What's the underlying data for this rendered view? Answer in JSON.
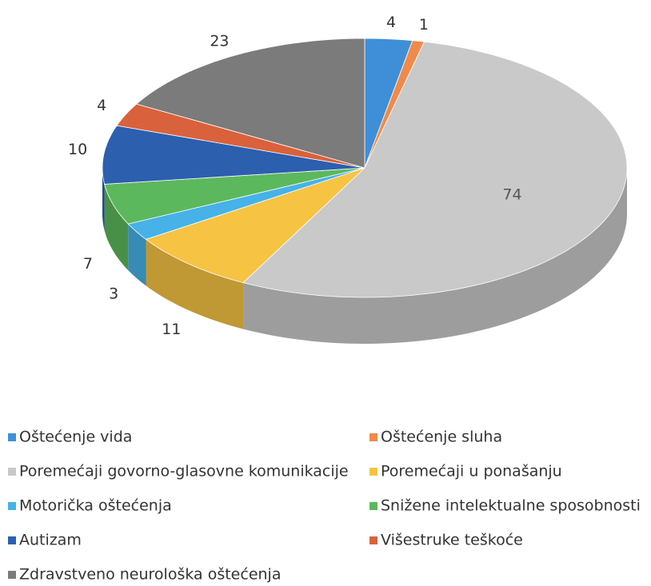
{
  "chart_data": {
    "type": "pie",
    "categories": [
      "Oštećenje vida",
      "Oštećenje sluha",
      "Poremećaji govorno-glasovne komunikacije",
      "Poremećaji u ponašanju",
      "Motorička oštećenja",
      "Snižene intelektualne sposobnosti",
      "Autizam",
      "Višestruke teškoće",
      "Zdravstveno neurološka oštećenja"
    ],
    "values": [
      4,
      1,
      74,
      11,
      3,
      7,
      10,
      4,
      23
    ],
    "colors": [
      "#3f8fd8",
      "#f08a4b",
      "#c9c9c9",
      "#f6c343",
      "#46b2e8",
      "#5cb85c",
      "#2c5fae",
      "#d9623c",
      "#7b7b7b"
    ]
  }
}
